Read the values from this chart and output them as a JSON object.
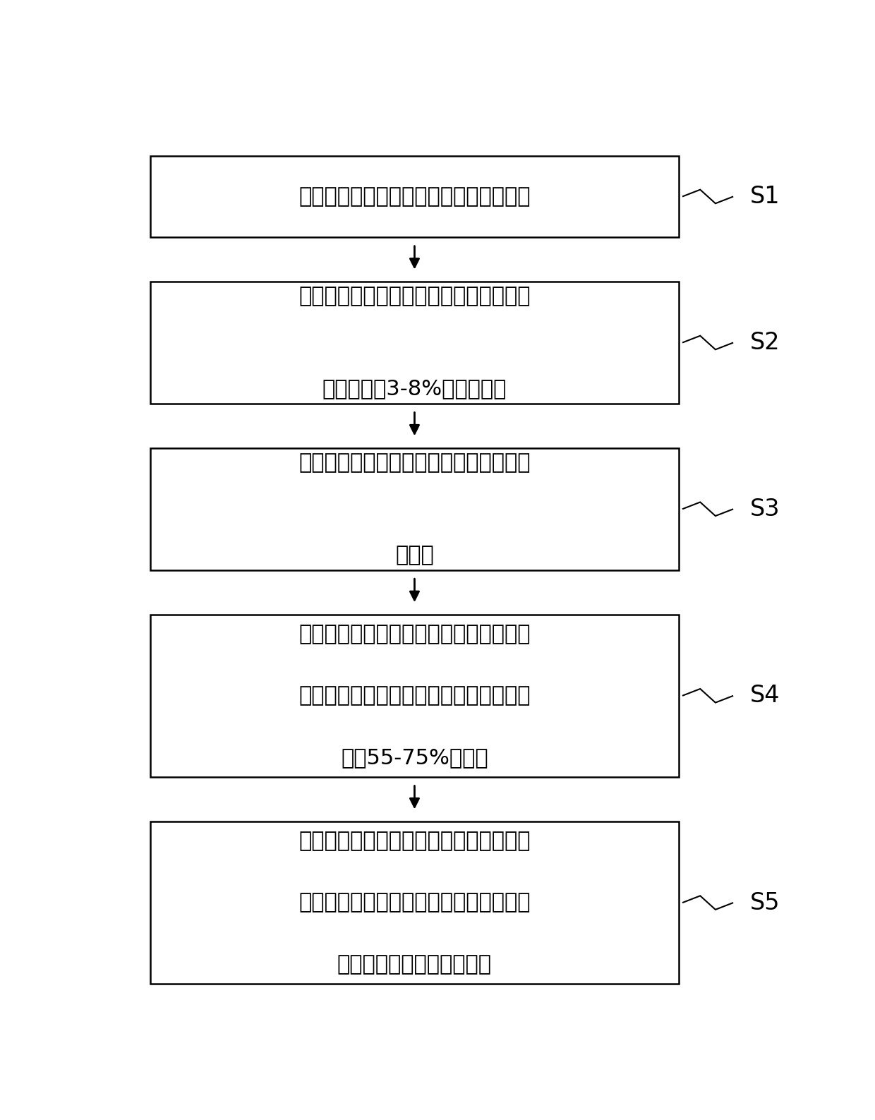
{
  "background_color": "#ffffff",
  "box_border_color": "#000000",
  "box_fill_color": "#ffffff",
  "arrow_color": "#000000",
  "text_color": "#000000",
  "steps": [
    {
      "id": "S1",
      "label": "S1",
      "lines": [
        "将粘结剂和导电剂低速混合形成混合粉体"
      ],
      "n_text_lines": 1
    },
    {
      "id": "S2",
      "label": "S2",
      "lines": [
        "往所述混合粉体中加入部分溶剂，混合形",
        "成固含量为3-8%的导电胶液"
      ],
      "n_text_lines": 2
    },
    {
      "id": "S3",
      "label": "S3",
      "lines": [
        "将磷酸铁锂粉体和部分溶剂低速混合形成",
        "湿粉体"
      ],
      "n_text_lines": 2
    },
    {
      "id": "S4",
      "label": "S4",
      "lines": [
        "将部分所述导电胶液加入所述湿粉体中，",
        "在真空下高速搅拌，混合均匀，形成固含",
        "量为55-75%的浆料"
      ],
      "n_text_lines": 3
    },
    {
      "id": "S5",
      "label": "S5",
      "lines": [
        "将剩余的所述导电胶液和剩余的溶剂加入",
        "所述浆料中，真空下高速搅拌以混合均匀",
        "，形成锂离子电池正极浆料"
      ],
      "n_text_lines": 3
    }
  ],
  "fig_width": 12.4,
  "fig_height": 15.87,
  "dpi": 100,
  "font_size": 22,
  "label_font_size": 24
}
